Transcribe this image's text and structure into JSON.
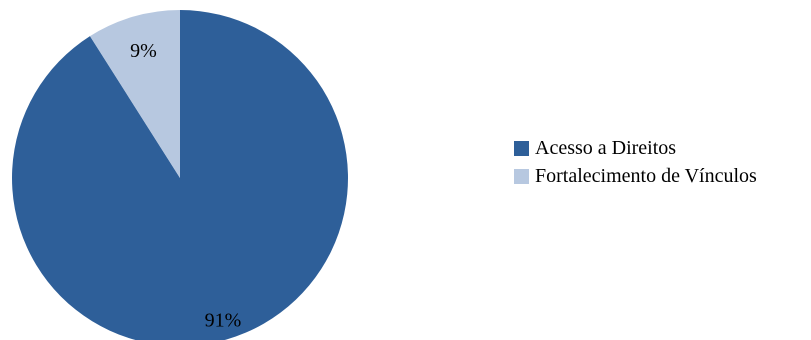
{
  "chart_data": {
    "type": "pie",
    "categories": [
      "Acesso a Direitos",
      "Fortalecimento de Vínculos"
    ],
    "values": [
      91,
      9
    ],
    "labels": [
      "91%",
      "9%"
    ],
    "colors": [
      "#2e5f99",
      "#b7c8e0"
    ],
    "title": "",
    "legend_position": "right"
  }
}
